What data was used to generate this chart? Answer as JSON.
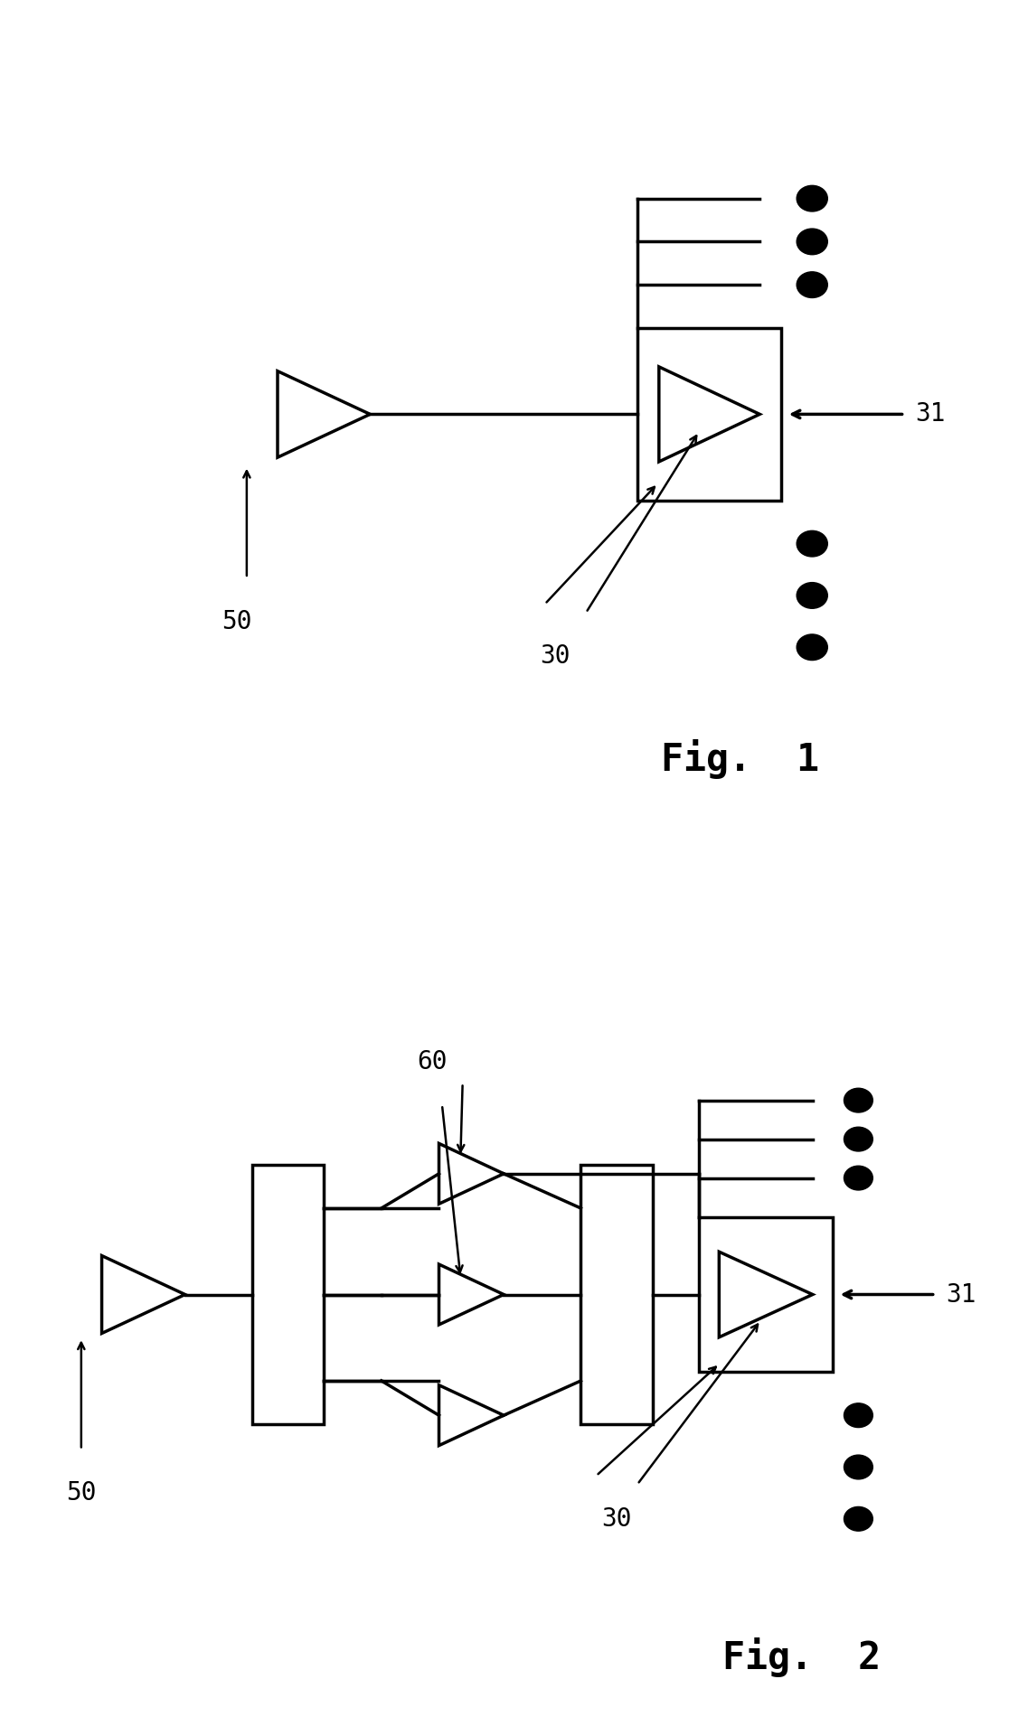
{
  "fig_width": 11.37,
  "fig_height": 19.1,
  "bg_color": "#ffffff",
  "line_color": "#000000",
  "lw": 2.5
}
